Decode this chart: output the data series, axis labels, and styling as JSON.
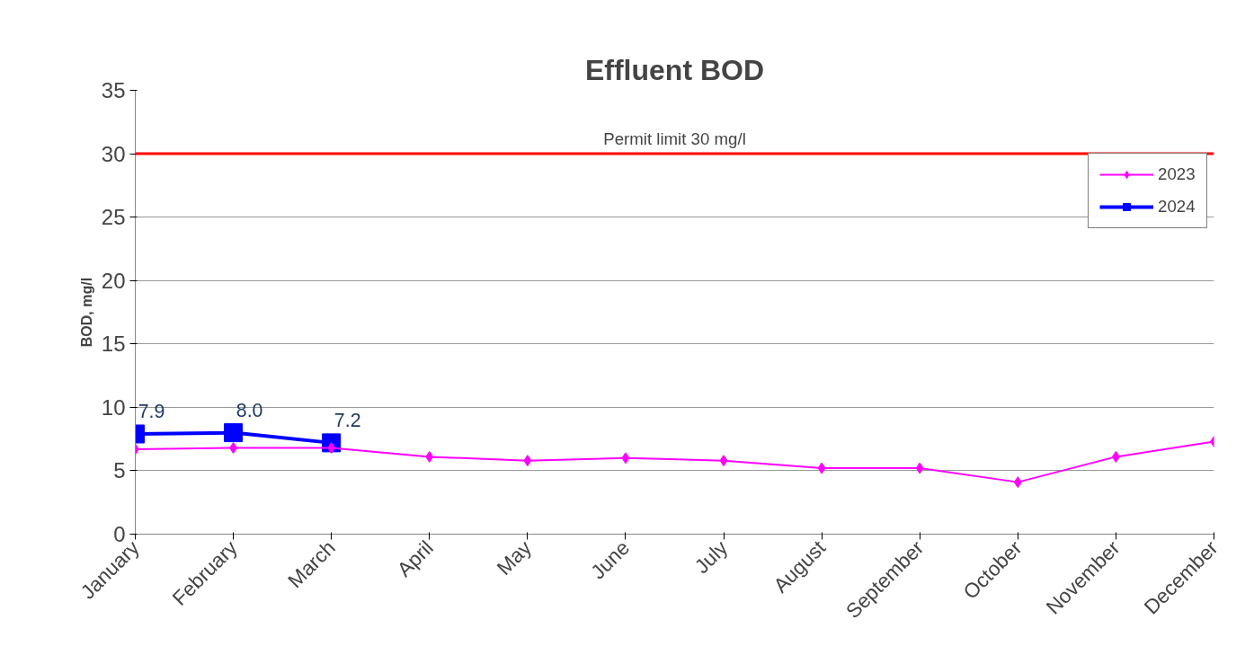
{
  "chart_data": {
    "type": "line",
    "title": "Effluent BOD",
    "ylabel": "BOD, mg/l",
    "categories": [
      "January",
      "February",
      "March",
      "April",
      "May",
      "June",
      "July",
      "August",
      "September",
      "October",
      "November",
      "December"
    ],
    "series": [
      {
        "name": "2023",
        "color": "#ff00ff",
        "marker": "diamond",
        "values": [
          6.7,
          6.8,
          6.8,
          6.1,
          5.8,
          6.0,
          5.8,
          5.2,
          5.2,
          4.1,
          6.1,
          7.3
        ]
      },
      {
        "name": "2024",
        "color": "#0000ff",
        "marker": "square",
        "values": [
          7.9,
          8.0,
          7.2,
          null,
          null,
          null,
          null,
          null,
          null,
          null,
          null,
          null
        ],
        "value_labels": [
          "7.9",
          "8.0",
          "7.2",
          null,
          null,
          null,
          null,
          null,
          null,
          null,
          null,
          null
        ]
      }
    ],
    "ylim": [
      0,
      35
    ],
    "yticks": [
      0,
      5,
      10,
      15,
      20,
      25,
      30,
      35
    ],
    "grid": "y",
    "legend": "top right",
    "ref_lines": [
      {
        "axis": "y",
        "value": 30,
        "label": "Permit limit 30 mg/l",
        "color": "#ff0000"
      }
    ]
  }
}
